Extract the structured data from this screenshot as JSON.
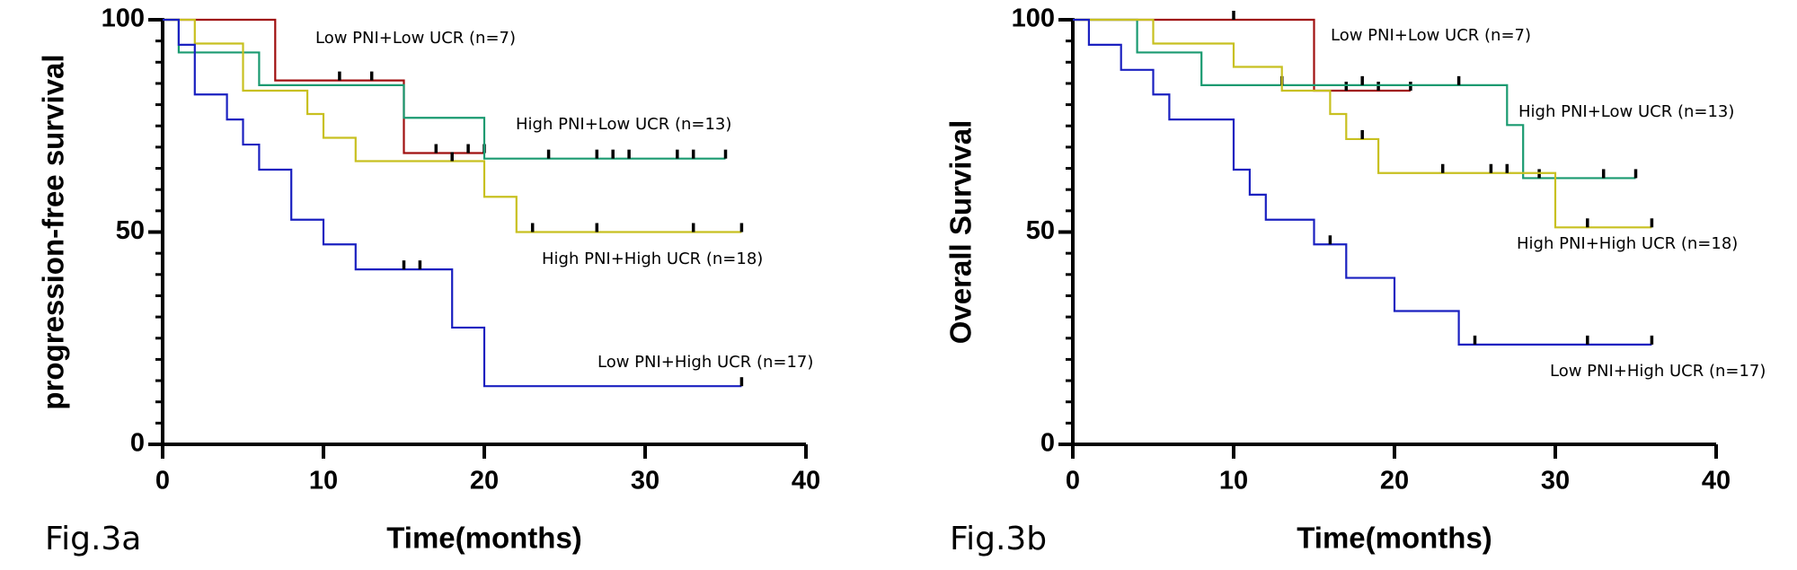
{
  "chart_data": [
    {
      "type": "step",
      "caption": "Fig.3a",
      "xlabel": "Time(months)",
      "ylabel": "progression-free survival",
      "xlim": [
        0,
        40
      ],
      "ylim": [
        0,
        100
      ],
      "xticks": [
        0,
        10,
        20,
        30,
        40
      ],
      "yticks": [
        0,
        50,
        100
      ],
      "series": [
        {
          "name": "Low PNI+Low UCR (n=7)",
          "color": "#a01010",
          "x": [
            0,
            7,
            15
          ],
          "values": [
            100,
            85.7,
            68.6
          ],
          "censored": [
            {
              "x": 11,
              "y": 85.7
            },
            {
              "x": 13,
              "y": 85.7
            },
            {
              "x": 17,
              "y": 68.6
            },
            {
              "x": 19,
              "y": 68.6
            },
            {
              "x": 20,
              "y": 68.6
            }
          ]
        },
        {
          "name": "High PNI+Low UCR (n=13)",
          "color": "#1a9a70",
          "x": [
            0,
            1,
            6,
            15,
            20
          ],
          "values": [
            100,
            92.3,
            84.6,
            76.9,
            67.3
          ],
          "censored": [
            {
              "x": 24,
              "y": 67.3
            },
            {
              "x": 27,
              "y": 67.3
            },
            {
              "x": 28,
              "y": 67.3
            },
            {
              "x": 29,
              "y": 67.3
            },
            {
              "x": 32,
              "y": 67.3
            },
            {
              "x": 33,
              "y": 67.3
            },
            {
              "x": 35,
              "y": 67.3
            }
          ]
        },
        {
          "name": "High PNI+High UCR (n=18)",
          "color": "#c8c020",
          "x": [
            0,
            2,
            5,
            9,
            10,
            12,
            20,
            22
          ],
          "values": [
            100,
            94.4,
            83.3,
            77.8,
            72.2,
            66.7,
            58.3,
            50
          ],
          "censored": [
            {
              "x": 18,
              "y": 66.7
            },
            {
              "x": 23,
              "y": 50
            },
            {
              "x": 27,
              "y": 50
            },
            {
              "x": 33,
              "y": 50
            },
            {
              "x": 36,
              "y": 50
            }
          ]
        },
        {
          "name": "Low PNI+High UCR (n=17)",
          "color": "#1a20c0",
          "x": [
            0,
            1,
            2,
            4,
            5,
            6,
            8,
            10,
            12,
            18,
            20
          ],
          "values": [
            100,
            94.1,
            82.4,
            76.5,
            70.6,
            64.7,
            52.9,
            47.1,
            41.2,
            27.5,
            13.7
          ],
          "censored": [
            {
              "x": 15,
              "y": 41.2
            },
            {
              "x": 16,
              "y": 41.2
            },
            {
              "x": 36,
              "y": 13.7
            }
          ]
        }
      ]
    },
    {
      "type": "step",
      "caption": "Fig.3b",
      "xlabel": "Time(months)",
      "ylabel": "Overall Survival",
      "xlim": [
        0,
        40
      ],
      "ylim": [
        0,
        100
      ],
      "xticks": [
        0,
        10,
        20,
        30,
        40
      ],
      "yticks": [
        0,
        50,
        100
      ],
      "series": [
        {
          "name": "Low PNI+Low UCR (n=7)",
          "color": "#a01010",
          "x": [
            0,
            15
          ],
          "values": [
            100,
            83.3
          ],
          "censored": [
            {
              "x": 10,
              "y": 100
            },
            {
              "x": 17,
              "y": 83.3
            },
            {
              "x": 19,
              "y": 83.3
            },
            {
              "x": 21,
              "y": 83.3
            }
          ]
        },
        {
          "name": "High PNI+Low UCR (n=13)",
          "color": "#1a9a70",
          "x": [
            0,
            4,
            8,
            27,
            28
          ],
          "values": [
            100,
            92.3,
            84.6,
            75.2,
            62.7
          ],
          "censored": [
            {
              "x": 13,
              "y": 84.6
            },
            {
              "x": 18,
              "y": 84.6
            },
            {
              "x": 24,
              "y": 84.6
            },
            {
              "x": 29,
              "y": 62.7
            },
            {
              "x": 33,
              "y": 62.7
            },
            {
              "x": 35,
              "y": 62.7
            }
          ]
        },
        {
          "name": "High PNI+High UCR (n=18)",
          "color": "#c8c020",
          "x": [
            0,
            5,
            10,
            13,
            16,
            17,
            19,
            30
          ],
          "values": [
            100,
            94.4,
            88.9,
            83.3,
            77.8,
            71.9,
            63.9,
            51.1
          ],
          "censored": [
            {
              "x": 18,
              "y": 71.9
            },
            {
              "x": 23,
              "y": 63.9
            },
            {
              "x": 26,
              "y": 63.9
            },
            {
              "x": 27,
              "y": 63.9
            },
            {
              "x": 32,
              "y": 51.1
            },
            {
              "x": 36,
              "y": 51.1
            }
          ]
        },
        {
          "name": "Low PNI+High UCR (n=17)",
          "color": "#1a20c0",
          "x": [
            0,
            1,
            3,
            5,
            6,
            10,
            11,
            12,
            15,
            17,
            20,
            24
          ],
          "values": [
            100,
            94.1,
            88.2,
            82.4,
            76.5,
            64.7,
            58.8,
            52.9,
            47.1,
            39.2,
            31.4,
            23.5
          ],
          "censored": [
            {
              "x": 16,
              "y": 47.1
            },
            {
              "x": 25,
              "y": 23.5
            },
            {
              "x": 32,
              "y": 23.5
            },
            {
              "x": 36,
              "y": 23.5
            }
          ]
        }
      ]
    }
  ]
}
